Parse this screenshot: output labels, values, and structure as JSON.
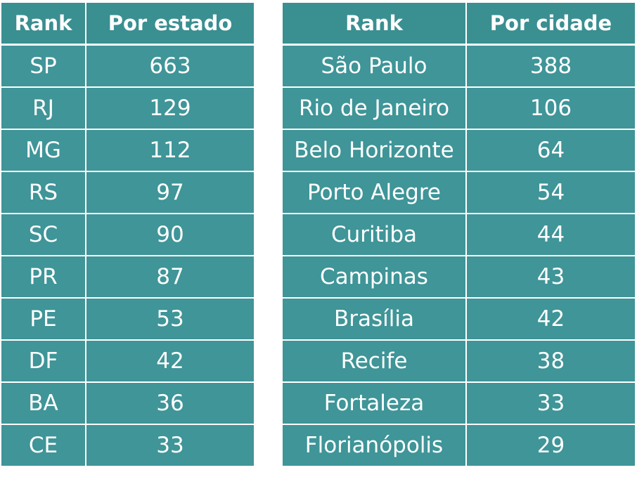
{
  "chart_data": [
    {
      "type": "table",
      "columns": [
        "Rank",
        "Por estado"
      ],
      "rows": [
        [
          "SP",
          663
        ],
        [
          "RJ",
          129
        ],
        [
          "MG",
          112
        ],
        [
          "RS",
          97
        ],
        [
          "SC",
          90
        ],
        [
          "PR",
          87
        ],
        [
          "PE",
          53
        ],
        [
          "DF",
          42
        ],
        [
          "BA",
          36
        ],
        [
          "CE",
          33
        ]
      ]
    },
    {
      "type": "table",
      "columns": [
        "Rank",
        "Por cidade"
      ],
      "rows": [
        [
          "São Paulo",
          388
        ],
        [
          "Rio de Janeiro",
          106
        ],
        [
          "Belo Horizonte",
          64
        ],
        [
          "Porto Alegre",
          54
        ],
        [
          "Curitiba",
          44
        ],
        [
          "Campinas",
          43
        ],
        [
          "Brasília",
          42
        ],
        [
          "Recife",
          38
        ],
        [
          "Fortaleza",
          33
        ],
        [
          "Florianópolis",
          29
        ]
      ]
    }
  ],
  "colors": {
    "cell_background": "#3f9598",
    "header_background": "#3a8f91",
    "text": "#ffffff",
    "border": "#ffffff"
  }
}
